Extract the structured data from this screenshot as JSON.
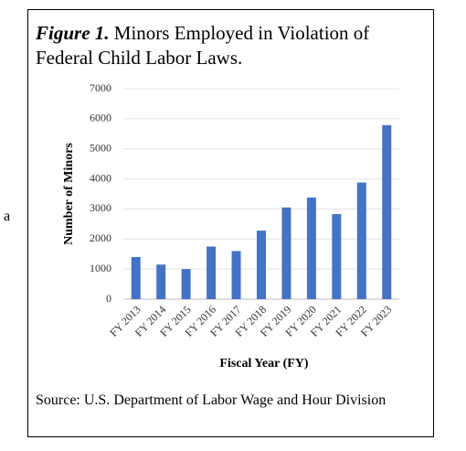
{
  "fragment": "a",
  "chart_data": {
    "type": "bar",
    "title_label": "Figure 1.",
    "title": "Minors Employed in Violation of Federal Child Labor Laws.",
    "categories": [
      "FY 2013",
      "FY 2014",
      "FY 2015",
      "FY 2016",
      "FY 2017",
      "FY 2018",
      "FY 2019",
      "FY 2020",
      "FY 2021",
      "FY 2022",
      "FY 2023"
    ],
    "values": [
      1400,
      1150,
      1000,
      1750,
      1600,
      2280,
      3050,
      3380,
      2830,
      3880,
      5790
    ],
    "color": "#4472c4",
    "ylim": [
      0,
      7000
    ],
    "yticks": [
      0,
      1000,
      2000,
      3000,
      4000,
      5000,
      6000,
      7000
    ],
    "grid": true,
    "xlabel": "Fiscal Year (FY)",
    "ylabel": "Number of Minors",
    "source": "Source: U.S. Department of Labor Wage and Hour Division"
  }
}
